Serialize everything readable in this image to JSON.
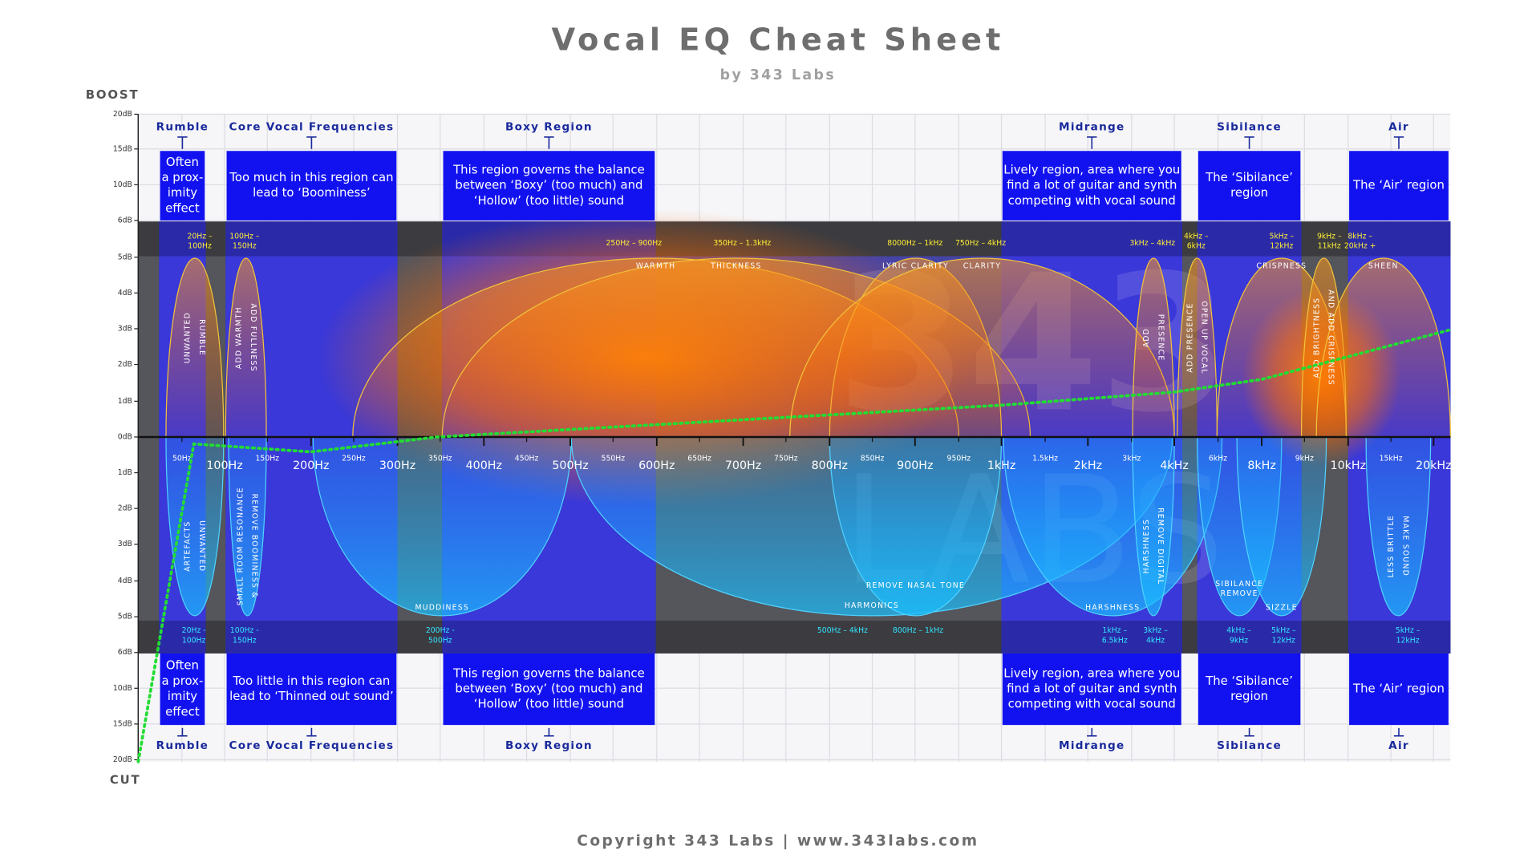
{
  "title": "Vocal EQ Cheat Sheet",
  "subtitle": "by 343 Labs",
  "boost_label": "BOOST",
  "cut_label": "CUT",
  "copyright": "Copyright 343 Labs | www.343labs.com",
  "watermark": {
    "numbers": "343",
    "word": "LABS"
  },
  "y_axis_labels": [
    "20dB",
    "15dB",
    "10dB",
    "6dB",
    "5dB",
    "4dB",
    "3dB",
    "2dB",
    "1dB",
    "0dB",
    "1dB",
    "2dB",
    "3dB",
    "4dB",
    "5dB",
    "6dB",
    "10dB",
    "15dB",
    "20dB"
  ],
  "x_axis_major": [
    "100Hz",
    "200Hz",
    "300Hz",
    "400Hz",
    "500Hz",
    "600Hz",
    "700Hz",
    "800Hz",
    "900Hz",
    "1kHz",
    "2kHz",
    "4kHz",
    "8kHz",
    "10kHz",
    "20kHz"
  ],
  "x_axis_minor": [
    "50Hz",
    "150Hz",
    "250Hz",
    "350Hz",
    "450Hz",
    "550Hz",
    "650Hz",
    "750Hz",
    "850Hz",
    "950Hz",
    "1.5kHz",
    "3kHz",
    "6kHz",
    "9kHz",
    "15kHz"
  ],
  "regions": [
    {
      "name": "Rumble",
      "top_text": [
        "Often",
        "a prox-",
        "imity",
        "effect"
      ],
      "bottom_text": [
        "Often",
        "a prox-",
        "imity",
        "effect"
      ]
    },
    {
      "name": "Core Vocal Frequencies",
      "top_text": [
        "Too much in this region can",
        "lead to ‘Boominess’"
      ],
      "bottom_text": [
        "Too little in this region can",
        "lead to ‘Thinned out sound’"
      ]
    },
    {
      "name": "Boxy Region",
      "top_text": [
        "This region governs the balance",
        "between ‘Boxy’ (too much) and",
        "‘Hollow’ (too little) sound"
      ],
      "bottom_text": [
        "This region governs the balance",
        "between ‘Boxy’ (too much) and",
        "‘Hollow’ (too little) sound"
      ]
    },
    {
      "name": "Midrange",
      "top_text": [
        "Lively region, area where you",
        "find a lot of guitar and synth",
        "competing with vocal sound"
      ],
      "bottom_text": [
        "Lively region, area where you",
        "find a lot of guitar and synth",
        "competing with vocal sound"
      ]
    },
    {
      "name": "Sibilance",
      "top_text": [
        "The ‘Sibilance’",
        "region"
      ],
      "bottom_text": [
        "The ‘Sibilance’",
        "region"
      ]
    },
    {
      "name": "Air",
      "top_text": [
        "The ‘Air’ region"
      ],
      "bottom_text": [
        "The ‘Air’ region"
      ]
    }
  ],
  "boost_curves": [
    {
      "label": [
        "UNWANTED",
        "RUMBLE"
      ],
      "range": [
        "20Hz –",
        "100Hz"
      ]
    },
    {
      "label": [
        "ADD WARMTH",
        "ADD FULLNESS"
      ],
      "range": [
        "100Hz –",
        "150Hz"
      ]
    },
    {
      "label": [
        "WARMTH"
      ],
      "range": [
        "250Hz – 900Hz"
      ]
    },
    {
      "label": [
        "THICKNESS"
      ],
      "range": [
        "350Hz – 1.3kHz"
      ]
    },
    {
      "label": [
        "LYRIC CLARITY"
      ],
      "range": [
        "8000Hz – 1kHz"
      ]
    },
    {
      "label": [
        "CLARITY"
      ],
      "range": [
        "750Hz – 4kHz"
      ]
    },
    {
      "label": [
        "ADD",
        "PRESENCE"
      ],
      "range": [
        "3kHz – 4kHz"
      ]
    },
    {
      "label": [
        "ADD PRESENCE",
        "OPEN UP VOCAL"
      ],
      "range": [
        "4kHz –",
        "6kHz"
      ]
    },
    {
      "label": [
        "CRISPNESS"
      ],
      "range": [
        "5kHz –",
        "12kHz"
      ]
    },
    {
      "label": [
        "ADD BRIGHTNESS",
        "AND ADD CRISPNESS"
      ],
      "range": [
        "9kHz –",
        "11kHz"
      ]
    },
    {
      "label": [
        "SHEEN"
      ],
      "range": [
        "8kHz –",
        "20kHz +"
      ]
    }
  ],
  "cut_curves": [
    {
      "label": [
        "ARTEFACTS",
        "UNWANTED"
      ],
      "range": [
        "20Hz -",
        "100Hz"
      ]
    },
    {
      "label": [
        "SMALL ROOM RESONANCE",
        "REMOVE BOOMINESS &"
      ],
      "range": [
        "100Hz -",
        "150Hz"
      ]
    },
    {
      "label": [
        "MUDDINESS"
      ],
      "range": [
        "200Hz -",
        "500Hz"
      ]
    },
    {
      "label": [
        "HARMONICS"
      ],
      "range": [
        "500Hz – 4kHz"
      ]
    },
    {
      "label": [
        "REMOVE NASAL TONE"
      ],
      "range": [
        "800Hz – 1kHz"
      ]
    },
    {
      "label": [
        "HARSHNESS"
      ],
      "range": [
        "1kHz –",
        "6.5kHz"
      ]
    },
    {
      "label": [
        "HARSHNESS",
        "REMOVE DIGITAL"
      ],
      "range": [
        "3kHz –",
        "4kHz"
      ]
    },
    {
      "label": [
        "SIBILANCE",
        "REMOVE"
      ],
      "range": [
        "4kHz –",
        "9kHz"
      ]
    },
    {
      "label": [
        "SIZZLE"
      ],
      "range": [
        "5kHz –",
        "12kHz"
      ]
    },
    {
      "label": [
        "LESS BRITTLE",
        "MAKE SOUND"
      ],
      "range": [
        "5kHz –",
        "12kHz"
      ]
    }
  ]
}
